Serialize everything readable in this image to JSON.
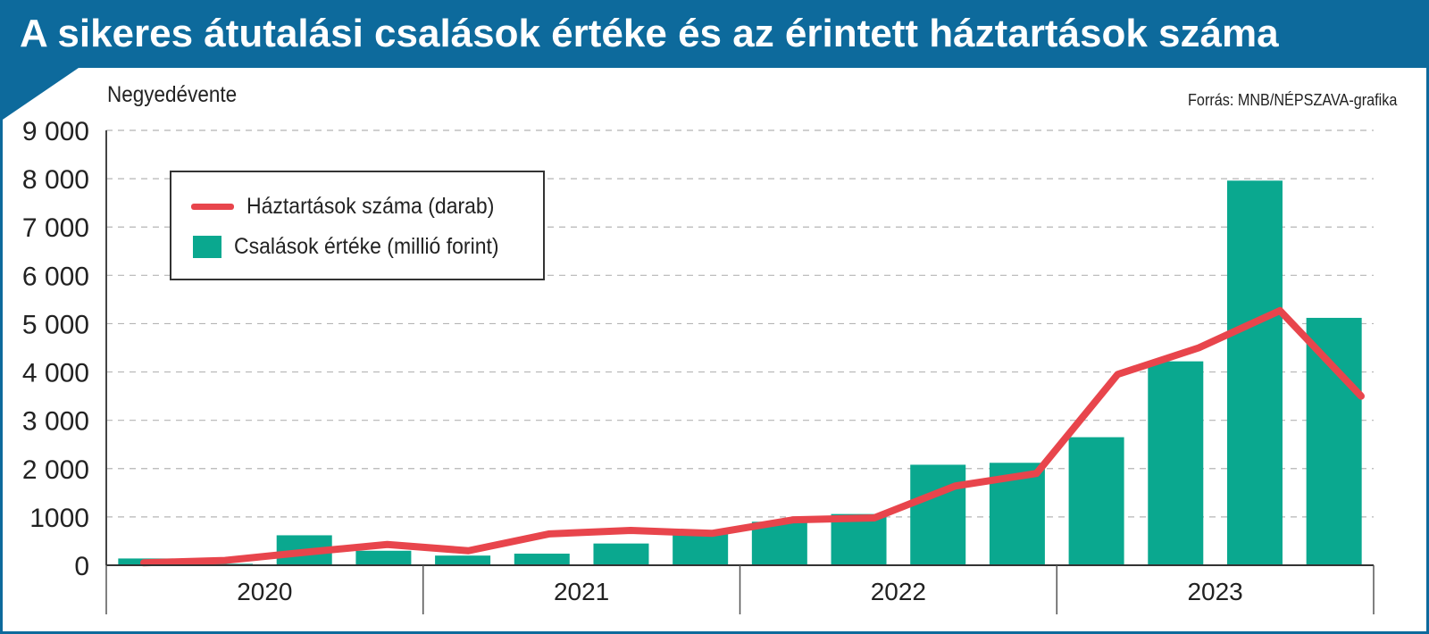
{
  "header": {
    "title": "A sikeres átutalási csalások értéke és az érintett háztartások száma",
    "subtitle": "Negyedévente",
    "source": "Forrás: MNB/NÉPSZAVA-grafika"
  },
  "colors": {
    "header_bg": "#0d6a9c",
    "bar": "#0aa88f",
    "line": "#e8454c"
  },
  "chart_data": {
    "type": "bar",
    "years": [
      "2020",
      "2021",
      "2022",
      "2023"
    ],
    "quarters_per_year": 4,
    "ylim": [
      0,
      9000
    ],
    "yticks": [
      0,
      1000,
      2000,
      3000,
      4000,
      5000,
      6000,
      7000,
      8000,
      9000
    ],
    "ytick_labels": [
      "0",
      "1000",
      "2 000",
      "3 000",
      "4 000",
      "5 000",
      "6 000",
      "7 000",
      "8 000",
      "9 000"
    ],
    "grid": "horizontal-dashed",
    "legend_position": "top-left",
    "series": [
      {
        "name": "Háztartások száma (darab)",
        "kind": "line",
        "values": [
          50,
          100,
          270,
          430,
          300,
          650,
          720,
          660,
          940,
          980,
          1640,
          1900,
          3950,
          4500,
          5270,
          3500
        ]
      },
      {
        "name": "Csalások értéke (millió forint)",
        "kind": "bar",
        "values": [
          140,
          30,
          620,
          300,
          200,
          240,
          450,
          720,
          900,
          1060,
          2080,
          2120,
          2650,
          4220,
          7960,
          5120
        ]
      }
    ]
  }
}
